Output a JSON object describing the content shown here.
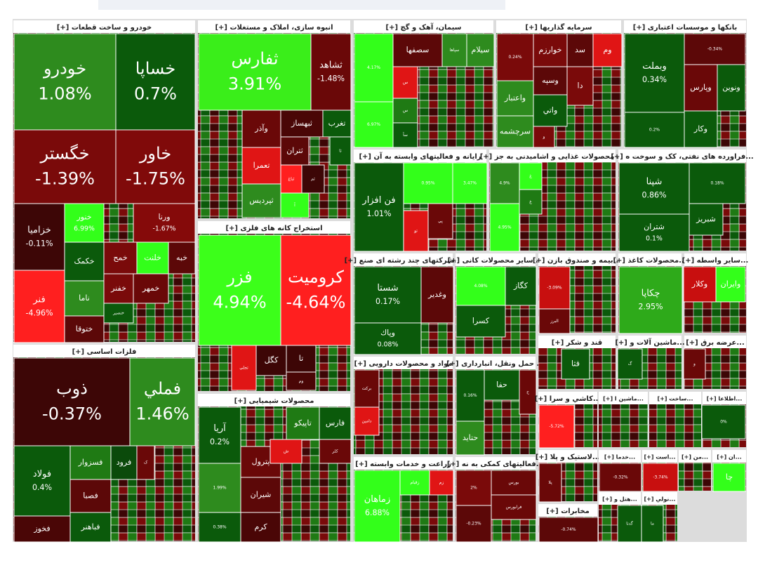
{
  "sectors": [
    {
      "title": "خودرو و ساخت قطعات [+]",
      "tiles": [
        {
          "name": "خودرو",
          "pct": "1.08%",
          "color": "#2e8b1e"
        },
        {
          "name": "خساپا",
          "pct": "0.7%",
          "color": "#0b5a0b"
        },
        {
          "name": "خگستر",
          "pct": "-1.39%",
          "color": "#7a0a0a"
        },
        {
          "name": "خاور",
          "pct": "-1.75%",
          "color": "#800a0a"
        },
        {
          "name": "خزامیا",
          "pct": "-0.11%",
          "color": "#3d0606"
        },
        {
          "name": "خنور",
          "pct": "6.99%",
          "color": "#33ff1a"
        },
        {
          "name": "ورنا",
          "pct": "-1.67%",
          "color": "#850a0a"
        },
        {
          "name": "فنر",
          "pct": "-4.96%",
          "color": "#ff1f1f"
        },
        {
          "name": "خکمک",
          "color": "#0b5a0b"
        },
        {
          "name": "خمح",
          "color": "#7a0a0a"
        },
        {
          "name": "خلنت",
          "color": "#33ff1a"
        },
        {
          "name": "خبه",
          "color": "#5c0808"
        },
        {
          "name": "ناما",
          "color": "#2e8b1e"
        },
        {
          "name": "خفنر",
          "color": "#7a0a0a"
        },
        {
          "name": "خمهر",
          "color": "#6a0808"
        },
        {
          "name": "خنصیر",
          "color": "#0b5a0b"
        },
        {
          "name": "ختوقا",
          "color": "#5c0808"
        }
      ]
    },
    {
      "title": "فلزات اساسی [+]",
      "tiles": [
        {
          "name": "ذوب",
          "pct": "-0.37%",
          "color": "#3d0606"
        },
        {
          "name": "فملي",
          "pct": "1.46%",
          "color": "#2e8b1e"
        },
        {
          "name": "فولاد",
          "pct": "0.4%",
          "color": "#0b5a0b"
        },
        {
          "name": "فسزوار",
          "color": "#1f7a14"
        },
        {
          "name": "فرود",
          "color": "#0b4a0b"
        },
        {
          "name": "ک",
          "color": "#6a0808"
        },
        {
          "name": "فصبا",
          "color": "#5c0808"
        },
        {
          "name": "فباهنر",
          "color": "#0b5a0b"
        },
        {
          "name": "فخوز",
          "color": "#4a0606"
        }
      ]
    },
    {
      "title": "انبوه سازی، املاک و مستغلات [+]",
      "tiles": [
        {
          "name": "ثفارس",
          "pct": "3.91%",
          "color": "#3aee1a"
        },
        {
          "name": "ثشاهد",
          "pct": "-1.48%",
          "color": "#6a0808"
        },
        {
          "name": "وآذر",
          "color": "#6a0808"
        },
        {
          "name": "ثبهساز",
          "color": "#4a0606"
        },
        {
          "name": "تغرب",
          "color": "#0b5a0b"
        },
        {
          "name": "تعمرا",
          "color": "#e01515"
        },
        {
          "name": "ثتران",
          "color": "#5c0808"
        },
        {
          "name": "ثباغ",
          "color": "#ff1f1f"
        },
        {
          "name": "ثم",
          "color": "#3d0606"
        },
        {
          "name": "تا",
          "color": "#0b5a0b"
        },
        {
          "name": "ثپردیس",
          "color": "#2e8b1e"
        },
        {
          "name": "آ",
          "color": "#33ff1a"
        }
      ]
    },
    {
      "title": "استخراج کانه های فلزی [+]",
      "tiles": [
        {
          "name": "فزر",
          "pct": "4.94%",
          "color": "#3cff1a"
        },
        {
          "name": "کرومیت",
          "pct": "-4.64%",
          "color": "#ff1f1f"
        },
        {
          "name": "تجلي",
          "color": "#e01515"
        },
        {
          "name": "كگل",
          "color": "#3d0606"
        },
        {
          "name": "تا",
          "color": "#3d0606"
        },
        {
          "name": "وم",
          "color": "#4a0606"
        }
      ]
    },
    {
      "title": "محصولات شیمیایی [+]",
      "tiles": [
        {
          "name": "فارس",
          "color": "#0b5a0b"
        },
        {
          "name": "تاپيكو",
          "color": "#1f7a14"
        },
        {
          "name": "پترول",
          "color": "#6a0808"
        },
        {
          "name": "شیران",
          "color": "#5c0808"
        },
        {
          "name": "کرم",
          "color": "#4a0606"
        },
        {
          "name": "ش",
          "color": "#e01515"
        },
        {
          "name": "کلر",
          "color": "#6a0808"
        },
        {
          "name": "آريا",
          "pct": "0.2%",
          "color": "#0b5a0b"
        },
        {
          "pct": "1.99%",
          "color": "#2e8b1e"
        },
        {
          "pct": "0.38%",
          "color": "#0b5a0b"
        }
      ]
    },
    {
      "title": "سیمان، آهک و گچ [+]",
      "tiles": [
        {
          "pct": "4.17%",
          "color": "#33ff1a"
        },
        {
          "name": "سصفها",
          "color": "#5c0808"
        },
        {
          "name": "سپاها",
          "color": "#2e8b1e"
        },
        {
          "name": "سیلام",
          "color": "#2e8b1e"
        },
        {
          "name": "س",
          "color": "#e01515"
        },
        {
          "name": "س",
          "color": "#1f7a14"
        },
        {
          "name": "سآ",
          "color": "#0b5a0b"
        },
        {
          "pct": "6.97%",
          "color": "#33ff1a"
        }
      ]
    },
    {
      "title": "رایانه و فعالیتهای وابسته به آن [+]",
      "tiles": [
        {
          "name": "فن افزار",
          "pct": "1.01%",
          "color": "#0b5a0b"
        },
        {
          "pct": "0.95%",
          "color": "#33ff1a"
        },
        {
          "pct": "3.47%",
          "color": "#33ff1a"
        },
        {
          "name": "پي",
          "color": "#6a0808"
        },
        {
          "name": "تو",
          "color": "#e01515"
        }
      ]
    },
    {
      "title": "سرمایه گذاریها [+]",
      "tiles": [
        {
          "pct": "0.24%",
          "color": "#7a0a0a"
        },
        {
          "name": "خوارزم",
          "color": "#7a0a0a"
        },
        {
          "name": "سد",
          "color": "#5c0808"
        },
        {
          "name": "وم",
          "color": "#e01515"
        },
        {
          "name": "وسپه",
          "color": "#5c0808"
        },
        {
          "name": "دا",
          "color": "#7a0a0a"
        },
        {
          "name": "واعتبار",
          "color": "#2e8b1e"
        },
        {
          "name": "واتي",
          "color": "#0b5a0b"
        },
        {
          "name": "سرچشمه",
          "color": "#2e8b1e"
        },
        {
          "name": "و",
          "color": "#7a0a0a"
        }
      ]
    },
    {
      "title": "بانکها و موسسات اعتباری [+]",
      "tiles": [
        {
          "name": "وبملت",
          "pct": "0.34%",
          "color": "#0b5a0b"
        },
        {
          "pct": "-0.34%",
          "color": "#5c0808"
        },
        {
          "name": "وپارس",
          "color": "#6a0808"
        },
        {
          "name": "ونوين",
          "color": "#0b5a0b"
        },
        {
          "pct": "0.2%",
          "color": "#0b5a0b"
        },
        {
          "name": "وكار",
          "color": "#0b5a0b"
        }
      ]
    },
    {
      "title": "... محصولات غذایی و اشامیدنی به جز [+]",
      "tiles": [
        {
          "pct": "4.9%",
          "color": "#2e8b1e"
        },
        {
          "name": "غ",
          "color": "#33ff1a"
        },
        {
          "name": "غ",
          "color": "#1f7a14"
        },
        {
          "pct": "4.95%",
          "color": "#33ff1a"
        }
      ]
    },
    {
      "title": "...فراورده های نفتی، کک و سوخت ه [+]",
      "tiles": [
        {
          "name": "شپنا",
          "pct": "0.86%",
          "color": "#0b5a0b"
        },
        {
          "pct": "0.18%",
          "color": "#0b5a0b"
        },
        {
          "name": "شبريز",
          "color": "#0b5a0b"
        },
        {
          "name": "شتران",
          "pct": "0.1%",
          "color": "#0b5a0b"
        }
      ]
    },
    {
      "title": "...شرکتهای چند رشته ای صنع [+]",
      "tiles": [
        {
          "name": "شستا",
          "pct": "0.17%",
          "color": "#0b5a0b"
        },
        {
          "name": "وغدير",
          "color": "#5c0808"
        },
        {
          "name": "وپاك",
          "pct": "0.08%",
          "color": "#0b5a0b"
        }
      ]
    },
    {
      "title": "... سایر محصولات کانی [+]",
      "tiles": [
        {
          "pct": "4.08%",
          "color": "#33ff1a"
        },
        {
          "name": "كگاز",
          "color": "#0b5a0b"
        },
        {
          "name": "كسرا",
          "color": "#0b5a0b"
        }
      ]
    },
    {
      "title": "...بیمه و صندوق بازن [+]",
      "tiles": [
        {
          "pct": "-3.09%",
          "color": "#c80f0f"
        },
        {
          "name": "البرز",
          "color": "#6a0808"
        }
      ]
    },
    {
      "title": "...محصولات کاغذ [+]",
      "tiles": [
        {
          "name": "چکاپا",
          "pct": "2.95%",
          "color": "#2eaa1a"
        }
      ]
    },
    {
      "title": "...سایر واسطه [+]",
      "tiles": [
        {
          "name": "وكلار",
          "color": "#c80f0f"
        },
        {
          "name": "وايران",
          "color": "#33ff1a"
        }
      ]
    },
    {
      "title": "مواد و محصولات دارویی [+]",
      "tiles": [
        {
          "name": "بركت",
          "color": "#6a0808"
        },
        {
          "name": "دامين",
          "color": "#e01515"
        }
      ]
    },
    {
      "title": "... حمل ونقل، انبارداری [+]",
      "tiles": [
        {
          "pct": "0.16%",
          "color": "#0b5a0b"
        },
        {
          "name": "حفا",
          "color": "#0b5a0b"
        },
        {
          "name": "ح",
          "color": "#6a0808"
        },
        {
          "name": "حتاید",
          "color": "#2e8b1e"
        }
      ]
    },
    {
      "title": "زراعت و خدمات وابسته [+]",
      "tiles": [
        {
          "name": "زماهان",
          "pct": "6.88%",
          "color": "#33ff1a"
        },
        {
          "name": "زقيام",
          "color": "#33ff1a"
        },
        {
          "name": "زم",
          "color": "#e01515"
        }
      ]
    },
    {
      "title": "...فعالیتهای کمکی به نه [+]",
      "tiles": [
        {
          "name": "بورس",
          "color": "#6a0808"
        },
        {
          "name": "فرابورس",
          "color": "#6a0808"
        },
        {
          "pct": "2%",
          "color": "#7a0a0a"
        },
        {
          "pct": "-0.23%",
          "color": "#5c0808"
        }
      ]
    },
    {
      "title": "قند و شکر [+]",
      "tiles": [
        {
          "name": "قثا",
          "color": "#0b5a0b"
        }
      ]
    },
    {
      "title": "...ماشین آلات و [+]",
      "tiles": [
        {
          "name": "گ",
          "color": "#0b5a0b"
        }
      ]
    },
    {
      "title": "...عرضه برق [+]",
      "tiles": [
        {
          "name": "و",
          "color": "#6a0808"
        }
      ]
    },
    {
      "title": "...كاشي و سرا [+]",
      "tiles": [
        {
          "pct": "-5.72%",
          "color": "#ff1f1f"
        }
      ]
    },
    {
      "title": "...ماشين ا [+]",
      "tiles": []
    },
    {
      "title": "...ساخت [+]",
      "tiles": []
    },
    {
      "title": "...اطلاعا [+]",
      "tiles": [
        {
          "pct": "0%",
          "color": "#0b5a0b"
        }
      ]
    },
    {
      "title": "...لاستیک و پلا [+]",
      "tiles": [
        {
          "name": "پلا",
          "color": "#6a0808"
        }
      ]
    },
    {
      "title": "...خدما [+]",
      "tiles": [
        {
          "pct": "-0.32%",
          "color": "#6a0808"
        }
      ]
    },
    {
      "title": "...است [+]",
      "tiles": [
        {
          "pct": "-3.74%",
          "color": "#c80f0f"
        }
      ]
    },
    {
      "title": "...من [+]",
      "tiles": []
    },
    {
      "title": "...ان [+]",
      "tiles": [
        {
          "name": "چا",
          "color": "#33ff1a"
        }
      ]
    },
    {
      "title": "مخابرات [+]",
      "tiles": [
        {
          "pct": "-0.74%",
          "color": "#5c0808"
        }
      ]
    },
    {
      "title": "...هتل و [+]",
      "tiles": [
        {
          "name": "گدنا",
          "color": "#0b5a0b"
        }
      ]
    },
    {
      "title": "...نولي [+]",
      "tiles": [
        {
          "name": "ما",
          "color": "#0b5a0b"
        }
      ]
    }
  ]
}
